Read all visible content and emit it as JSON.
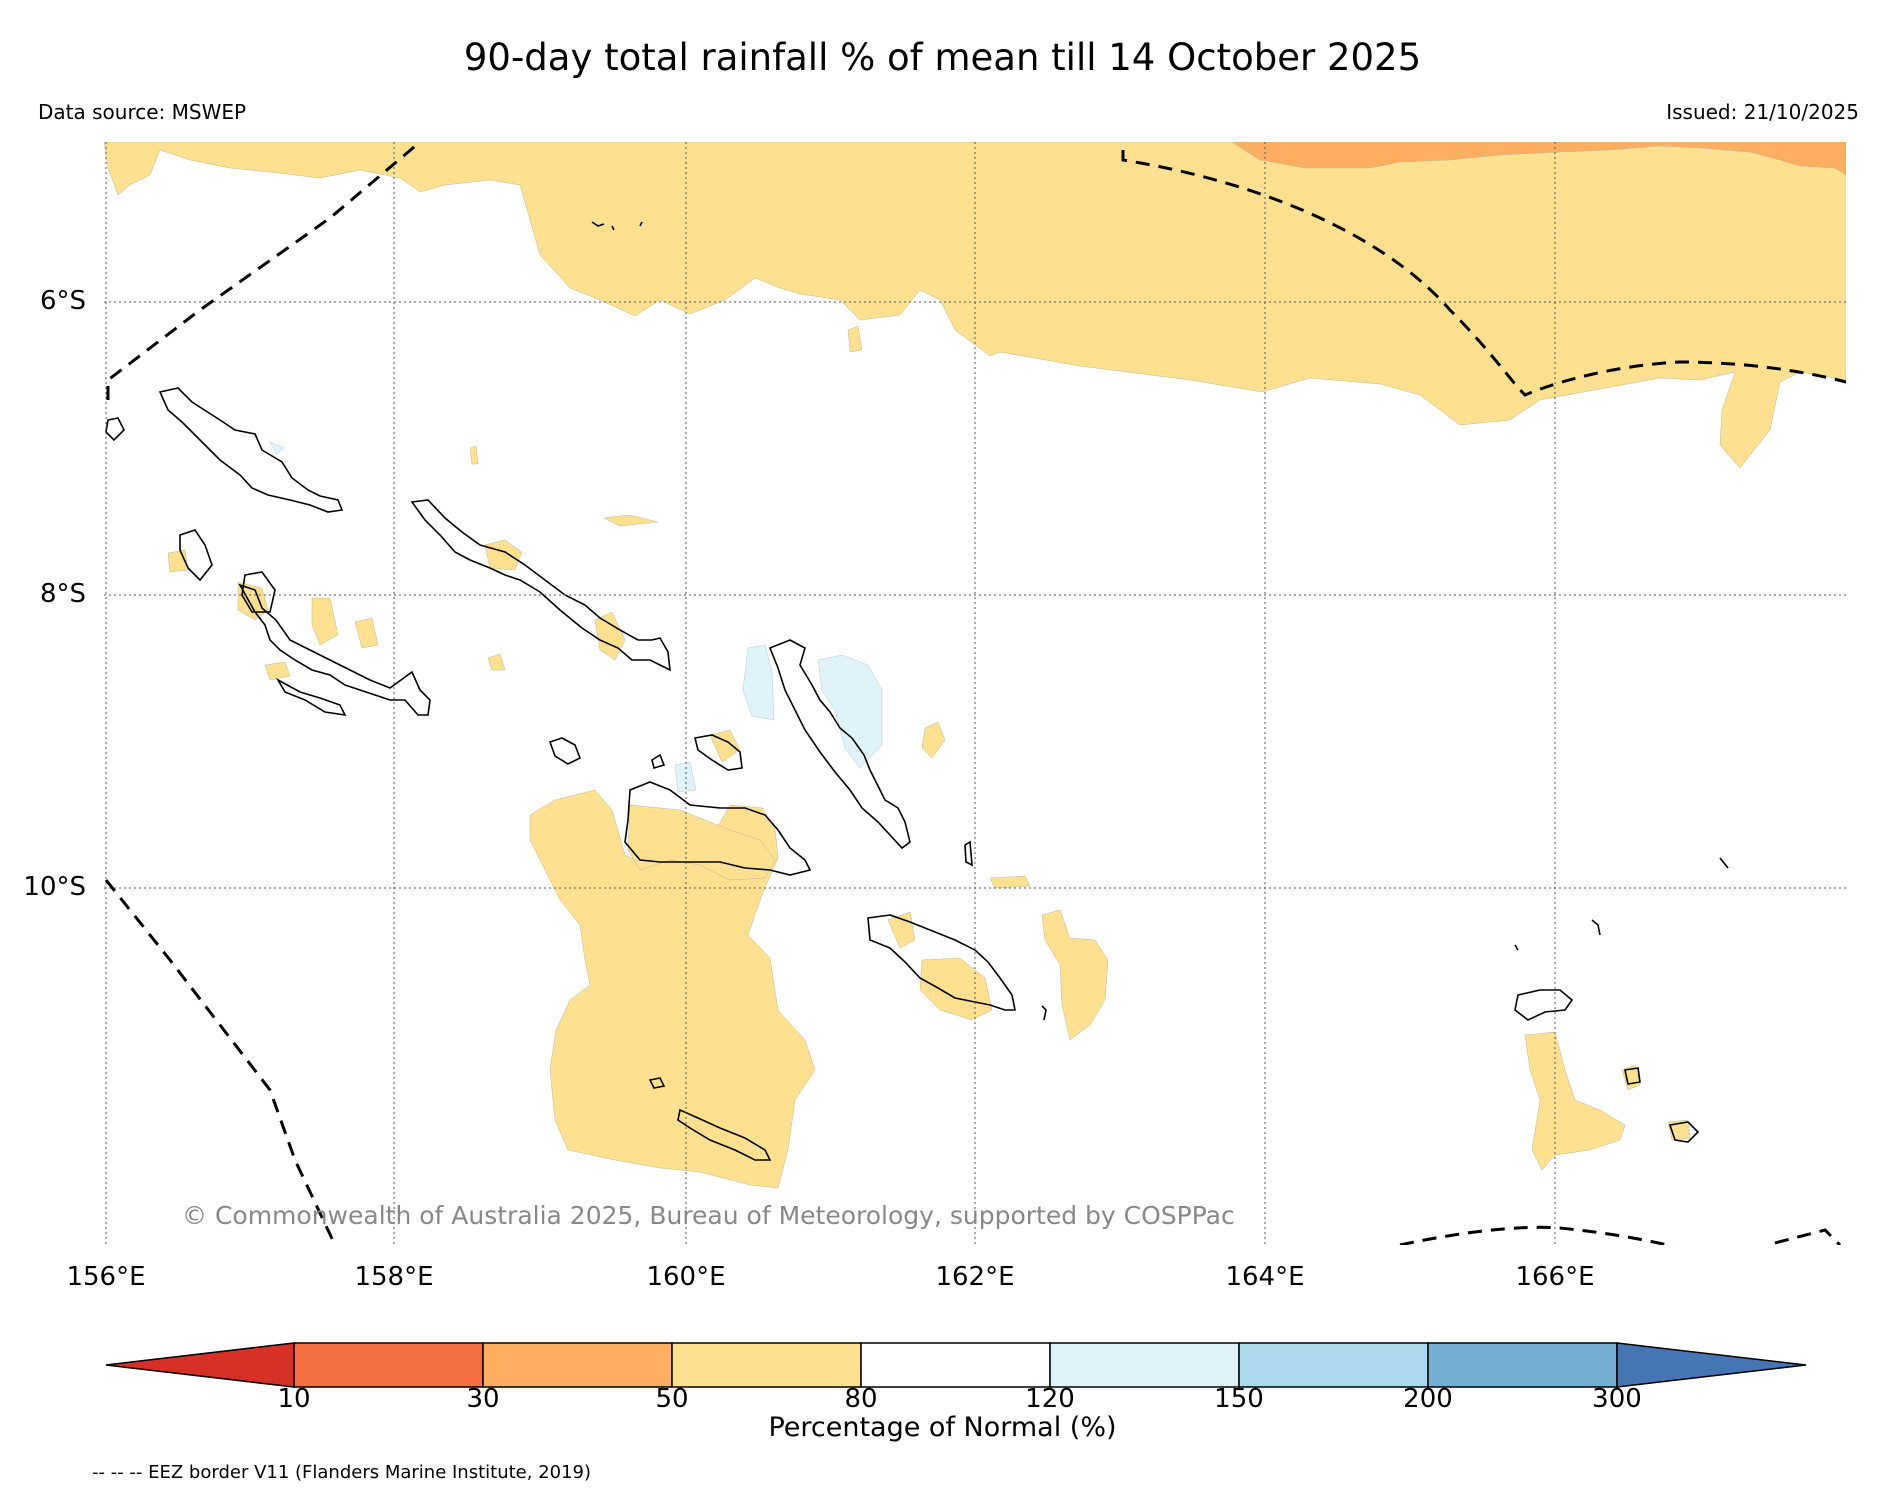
{
  "title": "90-day total rainfall % of mean till 14 October 2025",
  "data_source": "Data source: MSWEP",
  "issued": "Issued: 21/10/2025",
  "copyright": "© Commonwealth of Australia 2025, Bureau of Meteorology, supported by COSPPac",
  "lat_labels": [
    "6°S",
    "8°S",
    "10°S"
  ],
  "lon_labels": [
    "156°E",
    "158°E",
    "160°E",
    "162°E",
    "164°E",
    "166°E"
  ],
  "colorbar": {
    "title": "Percentage of Normal (%)",
    "ticks": [
      "10",
      "30",
      "50",
      "80",
      "120",
      "150",
      "200",
      "300"
    ],
    "colors": [
      "#d73027",
      "#f46d43",
      "#fdae61",
      "#fee090",
      "#ffffff",
      "#e0f3f8",
      "#abd9e9",
      "#74add1",
      "#4575b4"
    ]
  },
  "eez_note": "-- -- -- EEZ border V11 (Flanders Marine Institute, 2019)",
  "colors": {
    "below_50_80": "#fee090",
    "below_30_50": "#fdae61",
    "above_120_150": "#e0f3f8",
    "coastline": "#000000",
    "grid": "#555555"
  }
}
